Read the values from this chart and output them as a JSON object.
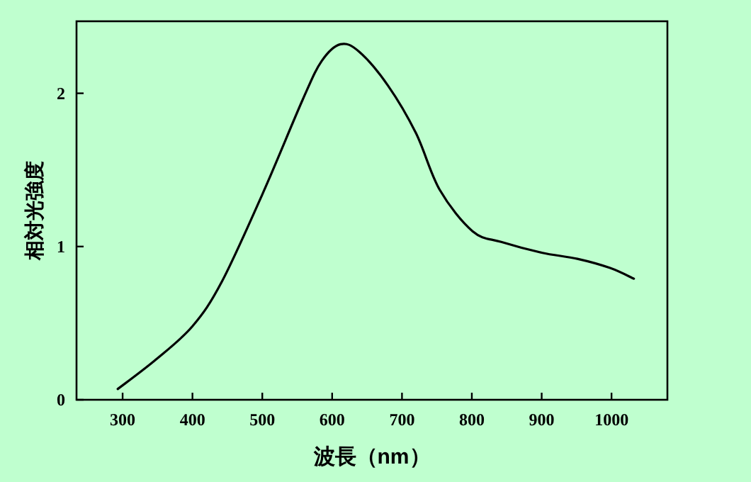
{
  "chart_data": {
    "type": "line",
    "xlabel": "波長（nm）",
    "ylabel": "相対光強度",
    "xlim": [
      234,
      1080
    ],
    "ylim": [
      0,
      2.47
    ],
    "xticks": [
      300,
      400,
      500,
      600,
      700,
      800,
      900,
      1000
    ],
    "yticks": [
      0,
      1,
      2
    ],
    "grid": false,
    "marker": "none",
    "line_style": "solid",
    "series": [
      {
        "color": "#000000",
        "x": [
          293,
          347,
          400,
          442,
          500,
          558,
          585,
          612,
          639,
          680,
          720,
          754,
          801,
          842,
          900,
          951,
          998,
          1032
        ],
        "values": [
          0.07,
          0.26,
          0.48,
          0.77,
          1.34,
          1.96,
          2.21,
          2.32,
          2.27,
          2.05,
          1.74,
          1.37,
          1.1,
          1.03,
          0.96,
          0.92,
          0.86,
          0.79
        ]
      }
    ]
  }
}
